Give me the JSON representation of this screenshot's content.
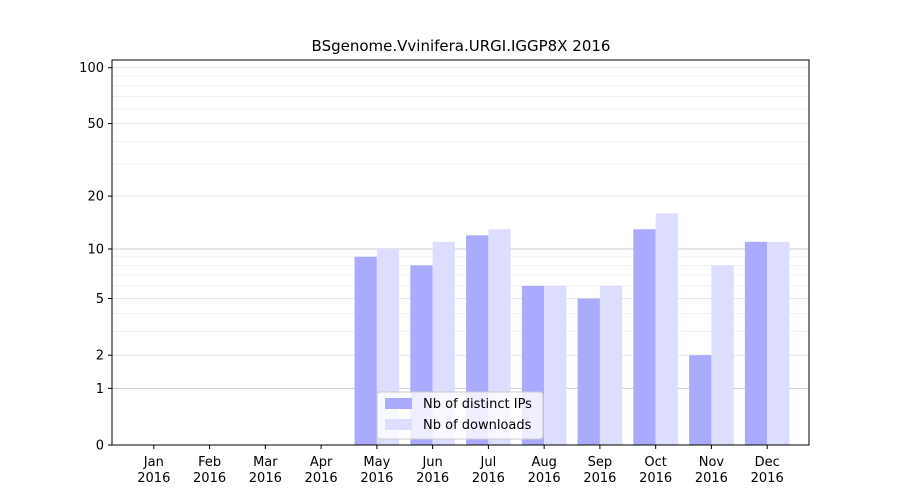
{
  "chart_data": {
    "type": "bar",
    "title": "BSgenome.Vvinifera.URGI.IGGP8X 2016",
    "xlabel": "",
    "ylabel": "",
    "yscale": "log1p",
    "ylim": [
      0,
      110
    ],
    "yticks": [
      0,
      1,
      2,
      5,
      10,
      20,
      50,
      100
    ],
    "categories": [
      "Jan\n2016",
      "Feb\n2016",
      "Mar\n2016",
      "Apr\n2016",
      "May\n2016",
      "Jun\n2016",
      "Jul\n2016",
      "Aug\n2016",
      "Sep\n2016",
      "Oct\n2016",
      "Nov\n2016",
      "Dec\n2016"
    ],
    "series": [
      {
        "name": "Nb of distinct IPs",
        "color": "#aaaaff",
        "values": [
          0,
          0,
          0,
          0,
          9,
          8,
          12,
          6,
          5,
          13,
          2,
          11
        ]
      },
      {
        "name": "Nb of downloads",
        "color": "#ddddff",
        "values": [
          0,
          0,
          0,
          0,
          10,
          11,
          13,
          6,
          6,
          16,
          8,
          11
        ]
      }
    ],
    "legend": "lower-center",
    "grid": true
  }
}
